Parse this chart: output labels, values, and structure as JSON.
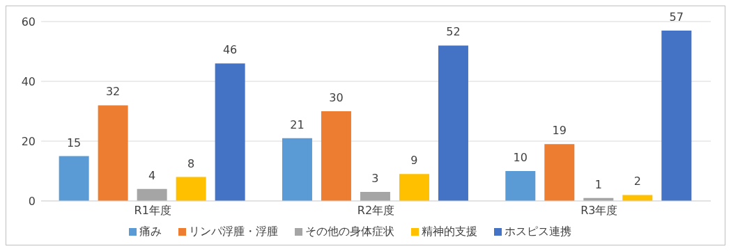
{
  "chart_data": {
    "type": "bar",
    "categories": [
      "R1年度",
      "R2年度",
      "R3年度"
    ],
    "series": [
      {
        "name": "痛み",
        "color": "#5b9bd5",
        "values": [
          15,
          21,
          10
        ]
      },
      {
        "name": "リンパ浮腫・浮腫",
        "color": "#ed7d31",
        "values": [
          32,
          30,
          19
        ]
      },
      {
        "name": "その他の身体症状",
        "color": "#a5a5a5",
        "values": [
          4,
          3,
          1
        ]
      },
      {
        "name": "精神的支援",
        "color": "#ffc000",
        "values": [
          8,
          9,
          2
        ]
      },
      {
        "name": "ホスピス連携",
        "color": "#4472c4",
        "values": [
          46,
          52,
          57
        ]
      }
    ],
    "ylim": [
      0,
      60
    ],
    "yticks": [
      0,
      20,
      40,
      60
    ],
    "grid": "y",
    "legend": "bottom",
    "data_labels": true
  }
}
